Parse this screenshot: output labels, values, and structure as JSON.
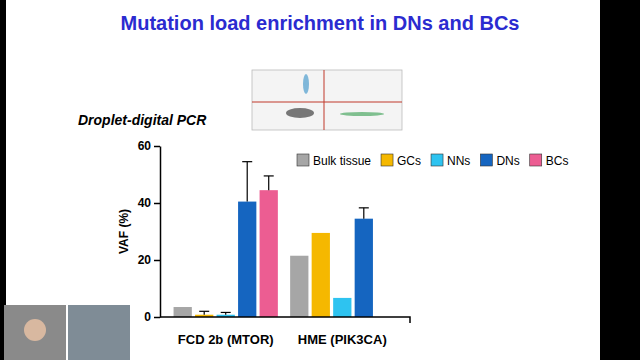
{
  "chart_data": {
    "type": "bar",
    "title": "Mutation load enrichment in DNs and BCs",
    "subtitle": "Droplet-digital PCR",
    "y_label": "VAF (%)",
    "categories": [
      "FCD 2b (MTOR)",
      "HME (PIK3CA)"
    ],
    "series": [
      {
        "name": "Bulk tissue",
        "color": "#a6a6a6",
        "values": [
          3.5,
          21.5
        ],
        "errors": [
          null,
          null
        ]
      },
      {
        "name": "GCs",
        "color": "#f5b800",
        "values": [
          0.8,
          29.5
        ],
        "errors": [
          1.2,
          null
        ]
      },
      {
        "name": "NNs",
        "color": "#2ec3f0",
        "values": [
          0.8,
          6.7
        ],
        "errors": [
          0.8,
          null
        ]
      },
      {
        "name": "DNs",
        "color": "#1565c0",
        "values": [
          40.5,
          34.5
        ],
        "errors": [
          14,
          3.8
        ]
      },
      {
        "name": "BCs",
        "color": "#ec5d92",
        "values": [
          44.5,
          null
        ],
        "errors": [
          5,
          null
        ]
      }
    ],
    "ylim": [
      0,
      60
    ],
    "yticks": [
      0,
      20,
      40,
      60
    ],
    "grid": false,
    "legend": "top"
  }
}
